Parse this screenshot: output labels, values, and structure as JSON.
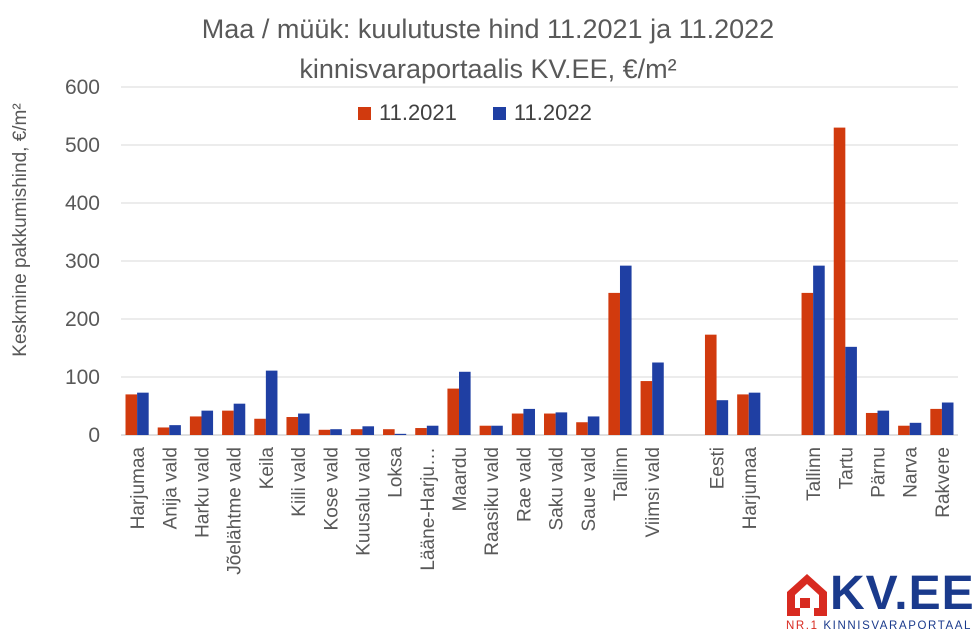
{
  "chart_data": {
    "type": "bar",
    "title": "Maa / müük: kuulutuste hind 11.2021 ja 11.2022",
    "subtitle": "kinnisvaraportaalis KV.EE, €/m²",
    "ylabel": "Keskmine pakkumishind, €/m²",
    "xlabel": "",
    "ylim": [
      0,
      600
    ],
    "yticks": [
      0,
      100,
      200,
      300,
      400,
      500,
      600
    ],
    "grid": true,
    "legend_position": "top",
    "categories": [
      "Harjumaa",
      "Anija vald",
      "Harku vald",
      "Jõelähtme vald",
      "Keila",
      "Kiili vald",
      "Kose vald",
      "Kuusalu vald",
      "Loksa",
      "Lääne-Harju…",
      "Maardu",
      "Raasiku vald",
      "Rae vald",
      "Saku vald",
      "Saue vald",
      "Tallinn",
      "Viimsi vald",
      "",
      "Eesti",
      "Harjumaa",
      "",
      "Tallinn",
      "Tartu",
      "Pärnu",
      "Narva",
      "Rakvere"
    ],
    "series": [
      {
        "name": "11.2021",
        "color": "#d13a0e",
        "values": [
          70,
          13,
          32,
          42,
          28,
          31,
          9,
          10,
          10,
          12,
          80,
          16,
          37,
          37,
          22,
          245,
          93,
          null,
          173,
          70,
          null,
          245,
          530,
          38,
          16,
          45
        ]
      },
      {
        "name": "11.2022",
        "color": "#1f3fa3",
        "values": [
          73,
          17,
          42,
          54,
          111,
          37,
          10,
          15,
          2,
          16,
          109,
          16,
          45,
          39,
          32,
          292,
          125,
          null,
          60,
          73,
          null,
          292,
          152,
          42,
          21,
          56
        ]
      }
    ]
  },
  "logo": {
    "name": "KV.EE",
    "tag_nr": "NR.1",
    "tag_text": "KINNISVARAPORTAAL"
  }
}
